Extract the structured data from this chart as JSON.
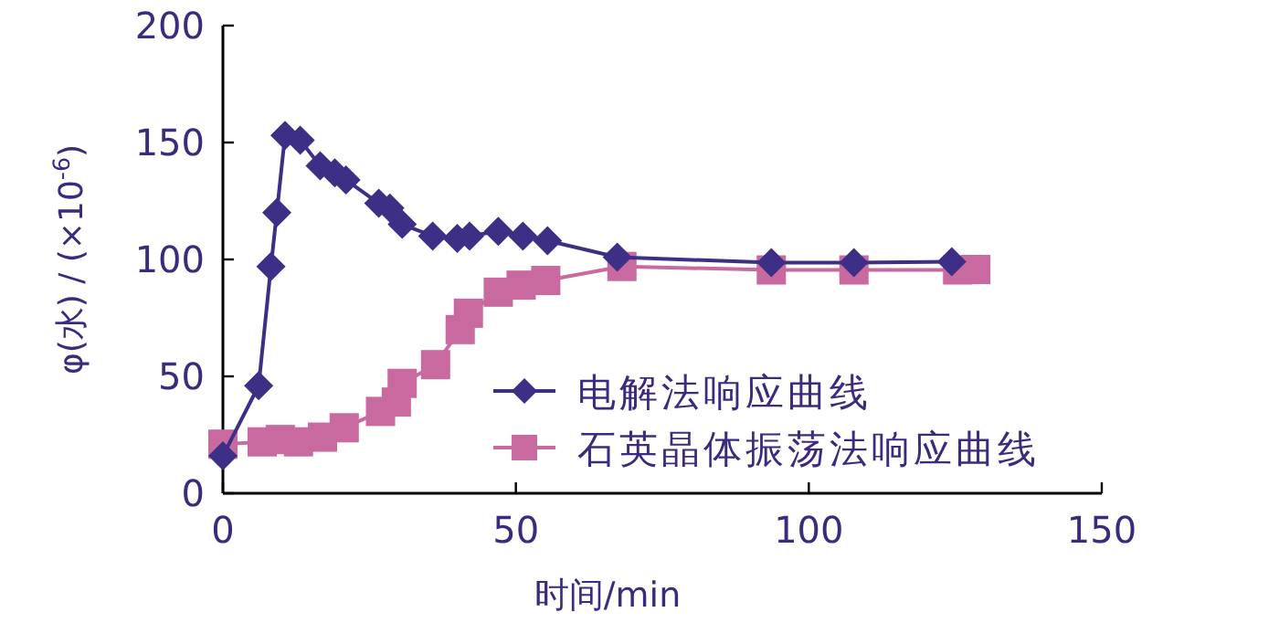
{
  "chart_data": {
    "type": "line",
    "xlabel": "时间/min",
    "ylabel": "φ(水) / (×10$^{-6}$)",
    "xlim": [
      0,
      150
    ],
    "ylim": [
      0,
      200
    ],
    "xticks": [
      0,
      50,
      100,
      150
    ],
    "yticks": [
      0,
      50,
      100,
      150,
      200
    ],
    "legend": "bottom right",
    "grid": false,
    "series": [
      {
        "name": "电解法响应曲线",
        "color": "#3d2e86",
        "marker": "diamond",
        "x": [
          0,
          6.1,
          8.2,
          9.2,
          10.6,
          13.2,
          16.6,
          19.1,
          21,
          26.6,
          28.5,
          30.6,
          35.8,
          40,
          42.1,
          47,
          51.2,
          55.4,
          67.3,
          93.6,
          107.7,
          124.4
        ],
        "values": [
          16,
          46,
          97,
          120,
          153,
          151,
          140,
          137,
          134,
          124,
          122,
          115,
          110,
          109,
          110,
          112,
          110,
          108,
          101,
          98.6,
          98.6,
          99
        ]
      },
      {
        "name": "石英晶体振荡法响应曲线",
        "color": "#c86aa0",
        "marker": "square",
        "x": [
          0,
          6.7,
          9.8,
          12.9,
          17,
          20.7,
          26.9,
          29.6,
          30.6,
          36.3,
          40.5,
          41.9,
          47,
          50.9,
          55.1,
          68.1,
          93.6,
          107.7,
          125.4,
          128.5
        ],
        "values": [
          21,
          22,
          23,
          22,
          24,
          28,
          35,
          39,
          47,
          55,
          70,
          77,
          86,
          89,
          91,
          97,
          95.5,
          95.5,
          95.5,
          95.7
        ]
      }
    ]
  }
}
